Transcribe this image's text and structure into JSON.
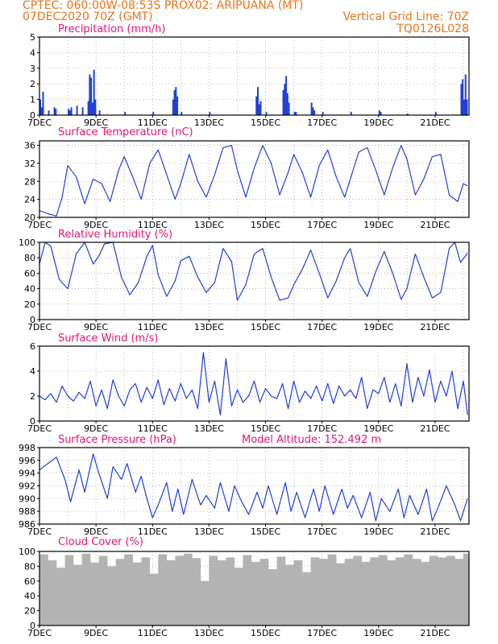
{
  "header": {
    "line1_left": "CPTEC:   060:00W-08:53S   PROX02: ARIPUANA (MT)",
    "line2_left": "07DEC2020 70Z (GMT)",
    "line2_right": "Vertical Grid Line: 70Z",
    "line3_right": "TQ0126L028"
  },
  "colors": {
    "header": "#e8731a",
    "title": "#e0157a",
    "series": "#1f3fd8",
    "cloud": "#b3b3b3",
    "grid": "#9a9a9a"
  },
  "x_tick_labels": [
    "7DEC",
    "9DEC",
    "11DEC",
    "13DEC",
    "15DEC",
    "17DEC",
    "19DEC",
    "21DEC"
  ],
  "x_tick_positions": [
    7,
    9,
    11,
    13,
    15,
    17,
    19,
    21
  ],
  "x_range": [
    7,
    22.2
  ],
  "chart_data": [
    {
      "type": "bar",
      "title": "Precipitation (mm/h)",
      "ylim": [
        0,
        5
      ],
      "yticks": [
        0,
        1,
        2,
        3,
        4,
        5
      ],
      "x_days": [
        7.0,
        7.05,
        7.1,
        7.3,
        7.5,
        7.55,
        8.0,
        8.05,
        8.1,
        8.3,
        8.5,
        8.7,
        8.75,
        8.8,
        8.85,
        8.9,
        8.95,
        9.1,
        10.0,
        11.0,
        11.7,
        11.75,
        11.8,
        11.85,
        12.0,
        13.0,
        14.65,
        14.7,
        14.75,
        14.8,
        15.0,
        15.6,
        15.65,
        15.7,
        15.75,
        15.8,
        16.0,
        16.05,
        16.6,
        16.65,
        16.7,
        17.0,
        18.0,
        19.0,
        19.05,
        20.0,
        21.0,
        21.9,
        21.95,
        22.0,
        22.05,
        22.1,
        22.15
      ],
      "values": [
        1.0,
        0.5,
        1.5,
        0.3,
        0.5,
        0.4,
        0.4,
        0.3,
        0.5,
        0.6,
        0.5,
        0.9,
        2.6,
        2.4,
        0.8,
        2.9,
        1.0,
        0.3,
        0.2,
        0.2,
        1.0,
        1.6,
        1.8,
        1.2,
        0.2,
        0.2,
        1.2,
        1.8,
        0.7,
        0.9,
        0.2,
        1.6,
        2.0,
        2.5,
        1.4,
        0.8,
        0.2,
        0.2,
        0.8,
        0.5,
        0.3,
        0.2,
        0.2,
        0.3,
        0.2,
        0.1,
        0.2,
        2.0,
        2.3,
        1.0,
        2.6,
        1.0,
        1.1
      ]
    },
    {
      "type": "line",
      "title": "Surface Temperature (nC)",
      "ylim": [
        20,
        37
      ],
      "yticks": [
        20,
        24,
        28,
        32,
        36
      ],
      "x_days": [
        7.0,
        7.3,
        7.6,
        7.8,
        8.0,
        8.3,
        8.6,
        8.9,
        9.2,
        9.5,
        9.8,
        10.0,
        10.3,
        10.6,
        10.9,
        11.2,
        11.5,
        11.8,
        12.0,
        12.3,
        12.6,
        12.9,
        13.2,
        13.5,
        13.8,
        14.0,
        14.3,
        14.6,
        14.9,
        15.2,
        15.5,
        15.8,
        16.0,
        16.3,
        16.6,
        16.9,
        17.2,
        17.5,
        17.8,
        18.0,
        18.3,
        18.6,
        18.9,
        19.2,
        19.5,
        19.8,
        20.0,
        20.3,
        20.6,
        20.9,
        21.2,
        21.5,
        21.8,
        22.0,
        22.15
      ],
      "values": [
        21.5,
        20.8,
        20.3,
        24.5,
        31.5,
        29.0,
        23.0,
        28.5,
        27.5,
        23.5,
        30.5,
        33.5,
        29.0,
        24.0,
        32.0,
        35.0,
        29.5,
        24.0,
        27.5,
        34.0,
        28.0,
        24.5,
        29.5,
        35.5,
        36.0,
        30.5,
        24.5,
        31.0,
        36.0,
        32.0,
        25.0,
        30.0,
        34.0,
        30.0,
        24.5,
        31.5,
        35.0,
        29.0,
        24.5,
        28.5,
        34.5,
        35.5,
        30.5,
        25.0,
        31.0,
        36.0,
        33.0,
        25.0,
        28.5,
        33.5,
        34.0,
        25.0,
        23.5,
        27.5,
        27.0
      ]
    },
    {
      "type": "line",
      "title": "Relative Humidity (%)",
      "ylim": [
        0,
        100
      ],
      "yticks": [
        0,
        20,
        40,
        60,
        80,
        100
      ],
      "x_days": [
        7.0,
        7.2,
        7.4,
        7.7,
        8.0,
        8.3,
        8.6,
        8.9,
        9.1,
        9.3,
        9.6,
        9.9,
        10.2,
        10.5,
        10.8,
        11.0,
        11.2,
        11.5,
        11.8,
        12.0,
        12.3,
        12.6,
        12.9,
        13.2,
        13.5,
        13.8,
        14.0,
        14.3,
        14.6,
        14.9,
        15.2,
        15.5,
        15.8,
        16.0,
        16.3,
        16.6,
        16.9,
        17.2,
        17.5,
        17.8,
        18.0,
        18.3,
        18.6,
        18.9,
        19.2,
        19.5,
        19.8,
        20.0,
        20.3,
        20.6,
        20.9,
        21.2,
        21.5,
        21.7,
        21.9,
        22.15
      ],
      "values": [
        72,
        100,
        95,
        52,
        40,
        85,
        100,
        72,
        82,
        98,
        100,
        55,
        32,
        48,
        82,
        96,
        58,
        30,
        50,
        76,
        82,
        55,
        35,
        48,
        92,
        75,
        25,
        45,
        85,
        92,
        55,
        25,
        28,
        45,
        65,
        90,
        60,
        28,
        50,
        80,
        92,
        48,
        30,
        62,
        88,
        60,
        26,
        40,
        85,
        55,
        28,
        35,
        92,
        100,
        74,
        86
      ]
    },
    {
      "type": "line",
      "title": "Surface Wind (m/s)",
      "ylim": [
        0,
        6
      ],
      "yticks": [
        0,
        2,
        4,
        6
      ],
      "x_days": [
        7.0,
        7.2,
        7.4,
        7.6,
        7.8,
        8.0,
        8.2,
        8.4,
        8.6,
        8.8,
        9.0,
        9.2,
        9.4,
        9.6,
        9.8,
        10.0,
        10.2,
        10.4,
        10.6,
        10.8,
        11.0,
        11.2,
        11.4,
        11.6,
        11.8,
        12.0,
        12.2,
        12.4,
        12.6,
        12.8,
        13.0,
        13.2,
        13.4,
        13.6,
        13.8,
        14.0,
        14.2,
        14.4,
        14.6,
        14.8,
        15.0,
        15.2,
        15.4,
        15.6,
        15.8,
        16.0,
        16.2,
        16.4,
        16.6,
        16.8,
        17.0,
        17.2,
        17.4,
        17.6,
        17.8,
        18.0,
        18.2,
        18.4,
        18.6,
        18.8,
        19.0,
        19.2,
        19.4,
        19.6,
        19.8,
        20.0,
        20.2,
        20.4,
        20.6,
        20.8,
        21.0,
        21.2,
        21.4,
        21.6,
        21.8,
        22.0,
        22.15
      ],
      "values": [
        2.0,
        1.7,
        2.2,
        1.5,
        2.8,
        2.0,
        1.6,
        2.3,
        1.8,
        3.2,
        1.2,
        2.5,
        1.0,
        3.3,
        2.0,
        1.2,
        2.5,
        3.0,
        1.5,
        2.7,
        1.8,
        3.3,
        1.3,
        2.6,
        1.6,
        3.0,
        1.8,
        2.5,
        1.0,
        5.5,
        1.5,
        3.2,
        0.5,
        5.0,
        1.2,
        2.5,
        1.5,
        2.0,
        3.2,
        1.5,
        2.6,
        2.0,
        1.8,
        3.0,
        1.0,
        3.2,
        1.5,
        2.4,
        1.8,
        2.8,
        1.6,
        3.0,
        1.4,
        2.8,
        2.0,
        2.5,
        1.8,
        3.5,
        1.0,
        2.5,
        2.2,
        3.5,
        1.5,
        3.0,
        1.2,
        4.6,
        1.5,
        3.5,
        2.0,
        4.1,
        1.5,
        3.2,
        2.0,
        4.0,
        1.0,
        3.2,
        0.5
      ]
    },
    {
      "type": "line",
      "title": "Surface Pressure (hPa)",
      "annotation": "Model Altitude: 152.492  m",
      "ylim": [
        986,
        998
      ],
      "yticks": [
        986,
        988,
        990,
        992,
        994,
        996,
        998
      ],
      "x_days": [
        7.0,
        7.3,
        7.6,
        7.9,
        8.1,
        8.4,
        8.6,
        8.9,
        9.1,
        9.4,
        9.6,
        9.9,
        10.1,
        10.4,
        10.6,
        10.8,
        11.0,
        11.2,
        11.5,
        11.7,
        11.9,
        12.1,
        12.4,
        12.7,
        12.9,
        13.2,
        13.4,
        13.7,
        13.9,
        14.1,
        14.4,
        14.7,
        14.9,
        15.1,
        15.4,
        15.7,
        15.9,
        16.1,
        16.4,
        16.7,
        16.9,
        17.1,
        17.4,
        17.7,
        17.9,
        18.1,
        18.4,
        18.7,
        18.9,
        19.1,
        19.4,
        19.7,
        19.9,
        20.1,
        20.4,
        20.7,
        20.9,
        21.1,
        21.4,
        21.7,
        21.9,
        22.15
      ],
      "values": [
        994.5,
        995.5,
        996.5,
        993.0,
        989.5,
        994.5,
        991.0,
        997.0,
        994.0,
        990.0,
        995.0,
        993.0,
        995.5,
        991.0,
        993.5,
        990.0,
        987.0,
        989.0,
        992.5,
        988.0,
        991.5,
        987.5,
        993.0,
        989.0,
        990.5,
        988.5,
        992.5,
        988.0,
        992.0,
        990.0,
        987.5,
        991.0,
        988.5,
        992.0,
        987.5,
        992.5,
        988.0,
        991.0,
        987.0,
        991.5,
        988.0,
        992.0,
        987.5,
        991.5,
        988.5,
        990.5,
        987.0,
        991.0,
        986.5,
        990.0,
        988.0,
        991.5,
        987.0,
        990.5,
        987.5,
        991.5,
        986.5,
        988.5,
        992.0,
        989.0,
        986.5,
        990.0
      ]
    },
    {
      "type": "bar",
      "title": "Cloud Cover (%)",
      "ylim": [
        0,
        100
      ],
      "yticks": [
        0,
        20,
        40,
        60,
        80,
        100
      ],
      "x_days": [
        7.0,
        7.3,
        7.6,
        7.9,
        8.2,
        8.5,
        8.8,
        9.1,
        9.4,
        9.7,
        10.0,
        10.3,
        10.6,
        10.9,
        11.2,
        11.5,
        11.8,
        12.1,
        12.4,
        12.7,
        13.0,
        13.3,
        13.6,
        13.9,
        14.2,
        14.5,
        14.8,
        15.1,
        15.4,
        15.7,
        16.0,
        16.3,
        16.6,
        16.9,
        17.2,
        17.5,
        17.8,
        18.1,
        18.4,
        18.7,
        19.0,
        19.3,
        19.6,
        19.9,
        20.2,
        20.5,
        20.8,
        21.1,
        21.4,
        21.7,
        22.0
      ],
      "values": [
        96,
        88,
        78,
        95,
        82,
        97,
        85,
        94,
        80,
        90,
        96,
        85,
        92,
        70,
        96,
        88,
        94,
        97,
        91,
        60,
        94,
        88,
        92,
        78,
        95,
        86,
        90,
        76,
        93,
        82,
        88,
        72,
        92,
        90,
        96,
        84,
        90,
        94,
        86,
        92,
        95,
        88,
        92,
        96,
        90,
        86,
        94,
        92,
        94,
        90,
        97
      ]
    }
  ]
}
